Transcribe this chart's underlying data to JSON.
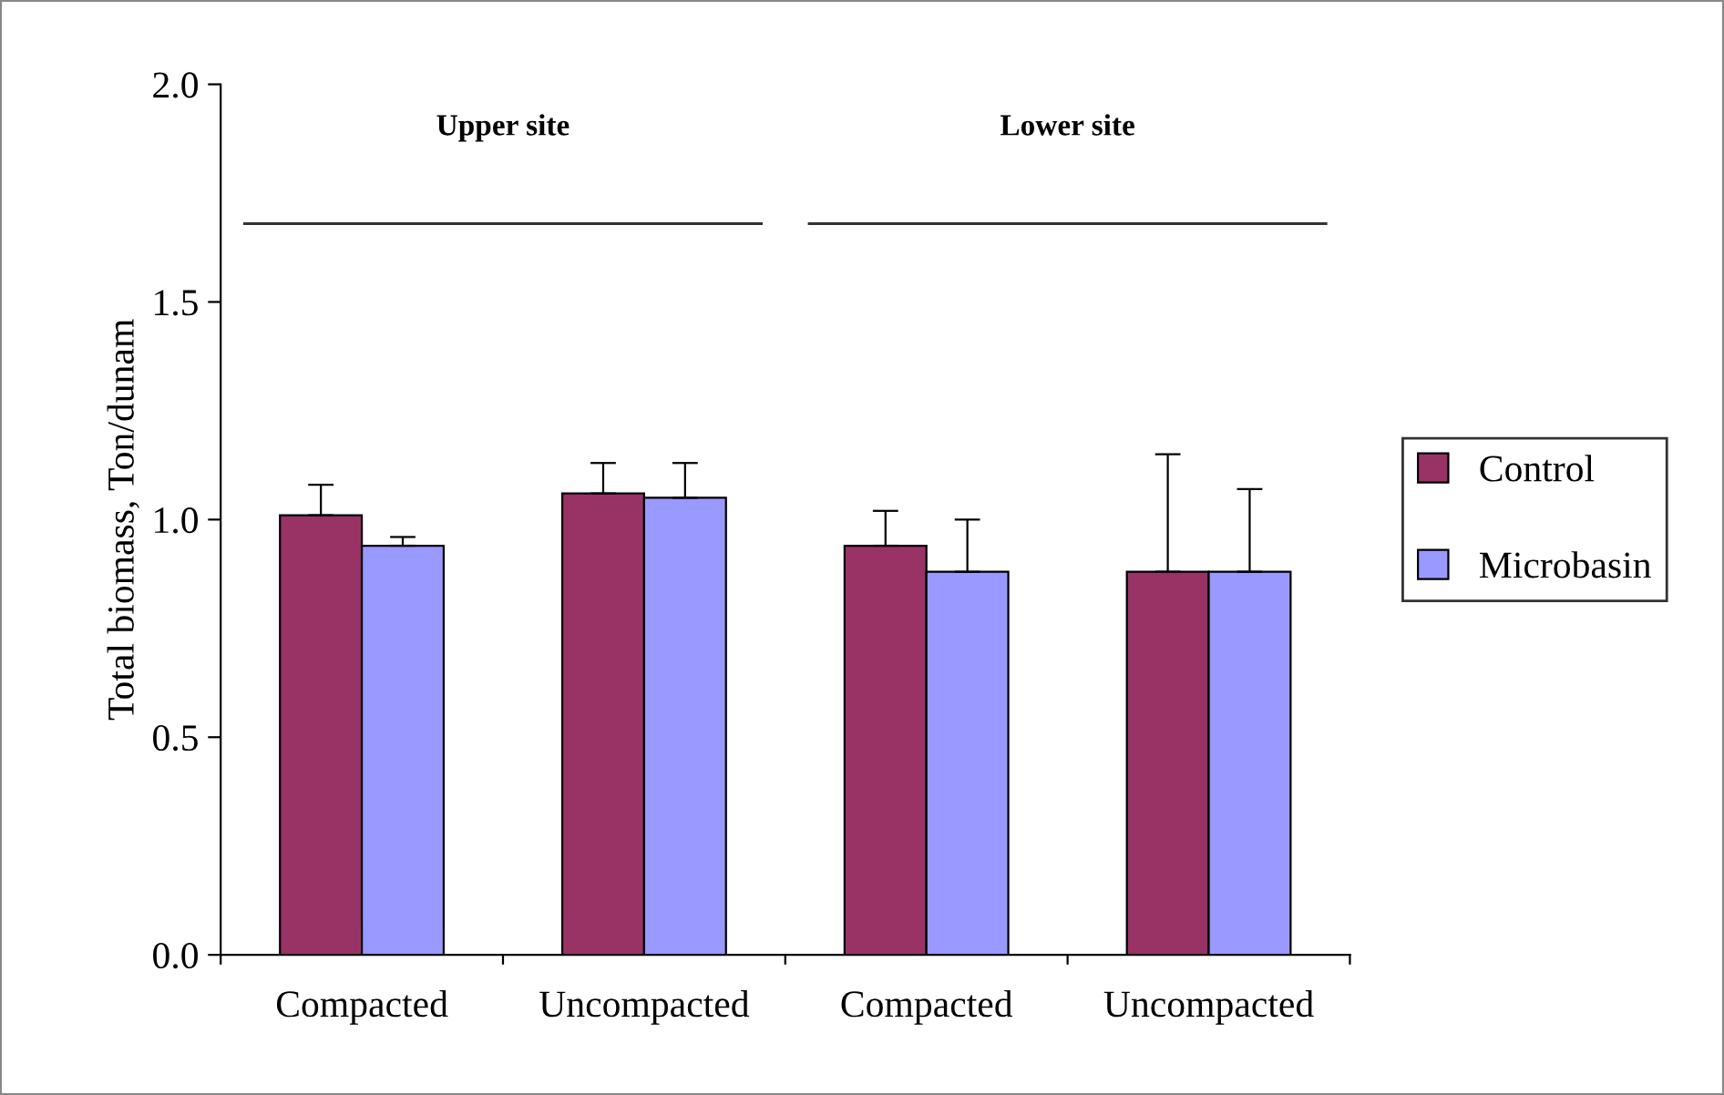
{
  "chart_data": {
    "type": "bar",
    "ylabel": "Total biomass, Ton/dunam",
    "categories": [
      "Compacted",
      "Uncompacted",
      "Compacted",
      "Uncompacted"
    ],
    "series": [
      {
        "name": "Control",
        "color": "#993366",
        "values": [
          1.01,
          1.06,
          0.94,
          0.88
        ],
        "errors": [
          [
            1.01,
            1.08
          ],
          [
            1.06,
            1.13
          ],
          [
            0.94,
            1.02
          ],
          [
            0.88,
            1.15
          ]
        ]
      },
      {
        "name": "Microbasin",
        "color": "#9999ff",
        "values": [
          0.94,
          1.05,
          0.88,
          0.88
        ],
        "errors": [
          [
            0.94,
            0.96
          ],
          [
            1.05,
            1.13
          ],
          [
            0.88,
            1.0
          ],
          [
            0.88,
            1.07
          ]
        ]
      }
    ],
    "annotations": [
      "Upper site",
      "Lower site"
    ],
    "ylim": [
      0,
      2
    ],
    "yticks": [
      {
        "value": 0,
        "label": "0.0"
      },
      {
        "value": 0.5,
        "label": "0.5"
      },
      {
        "value": 1,
        "label": "1.0"
      },
      {
        "value": 1.5,
        "label": "1.5"
      },
      {
        "value": 2,
        "label": "2.0"
      }
    ],
    "grid": false,
    "legend": "right"
  }
}
